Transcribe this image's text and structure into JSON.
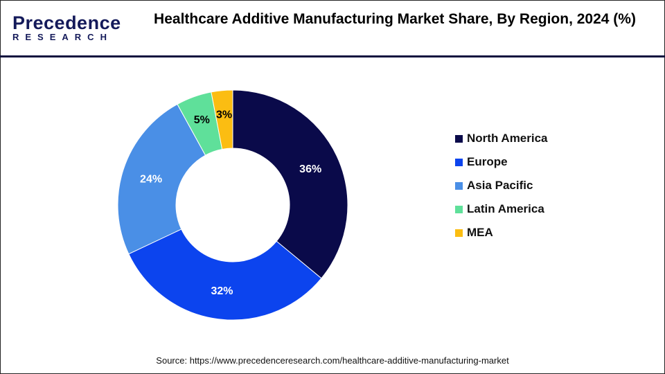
{
  "logo": {
    "line1": "Precedence",
    "line2": "RESEARCH"
  },
  "title": "Healthcare Additive Manufacturing Market Share, By Region, 2024 (%)",
  "source": "Source: https://www.precedenceresearch.com/healthcare-additive-manufacturing-market",
  "chart_data": {
    "type": "pie",
    "donut": true,
    "title": "Healthcare Additive Manufacturing Market Share, By Region, 2024 (%)",
    "categories": [
      "North America",
      "Europe",
      "Asia Pacific",
      "Latin America",
      "MEA"
    ],
    "values": [
      36,
      32,
      24,
      5,
      3
    ],
    "labels": [
      "36%",
      "32%",
      "24%",
      "5%",
      "3%"
    ],
    "colors": [
      "#0a0a4a",
      "#0c44ee",
      "#4a8fe6",
      "#5fe09a",
      "#fbbd12"
    ],
    "label_colors": [
      "#ffffff",
      "#ffffff",
      "#ffffff",
      "#000000",
      "#000000"
    ],
    "legend": "right"
  }
}
